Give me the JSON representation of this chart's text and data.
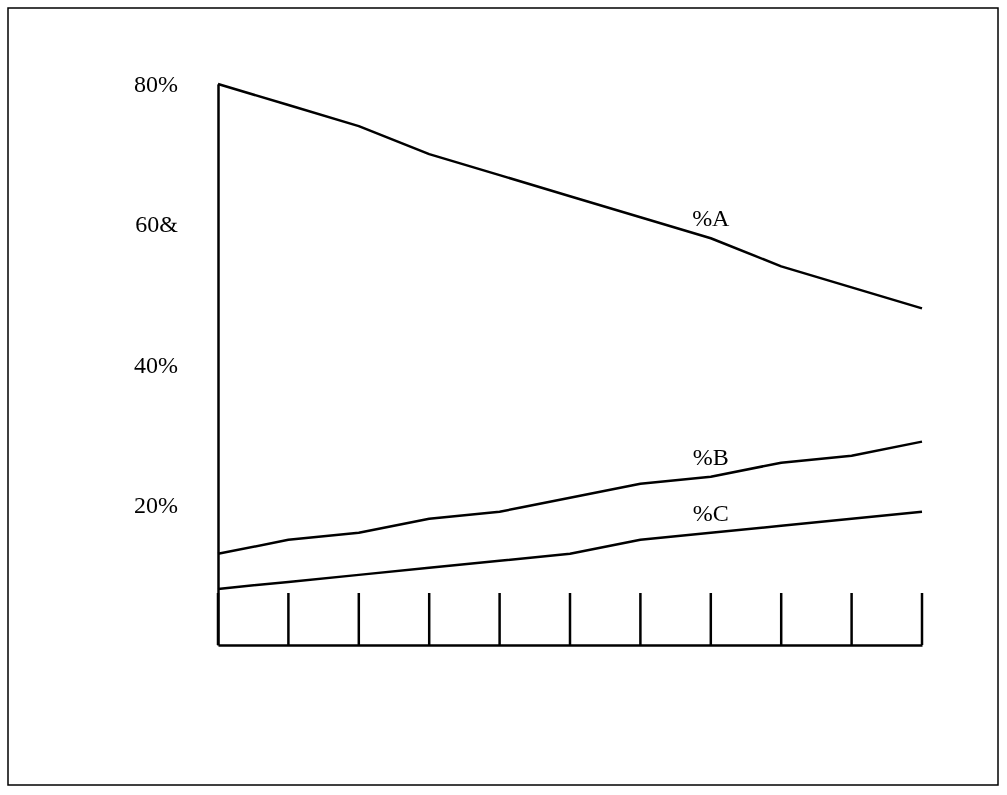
{
  "chart_data": {
    "type": "line",
    "categories": [
      null,
      null,
      null,
      null,
      null,
      null,
      null,
      null,
      null,
      null,
      null
    ],
    "series": [
      {
        "name": "%A",
        "color": "#000000",
        "values": [
          80,
          77,
          74,
          70,
          67,
          64,
          61,
          58,
          54,
          51,
          48
        ]
      },
      {
        "name": "%B",
        "color": "#000000",
        "values": [
          13,
          15,
          16,
          18,
          19,
          21,
          23,
          24,
          26,
          27,
          29
        ]
      },
      {
        "name": "%C",
        "color": "#000000",
        "values": [
          8,
          9,
          10,
          11,
          12,
          13,
          15,
          16,
          17,
          18,
          19
        ]
      }
    ],
    "ylim": [
      0,
      80
    ],
    "yticks": [
      {
        "value": 20,
        "label": "20%"
      },
      {
        "value": 40,
        "label": "40%"
      },
      {
        "value": 60,
        "label": "60&"
      },
      {
        "value": 80,
        "label": "80%"
      }
    ],
    "grid": false,
    "legend": false,
    "marker": "none",
    "line_style": "solid"
  }
}
